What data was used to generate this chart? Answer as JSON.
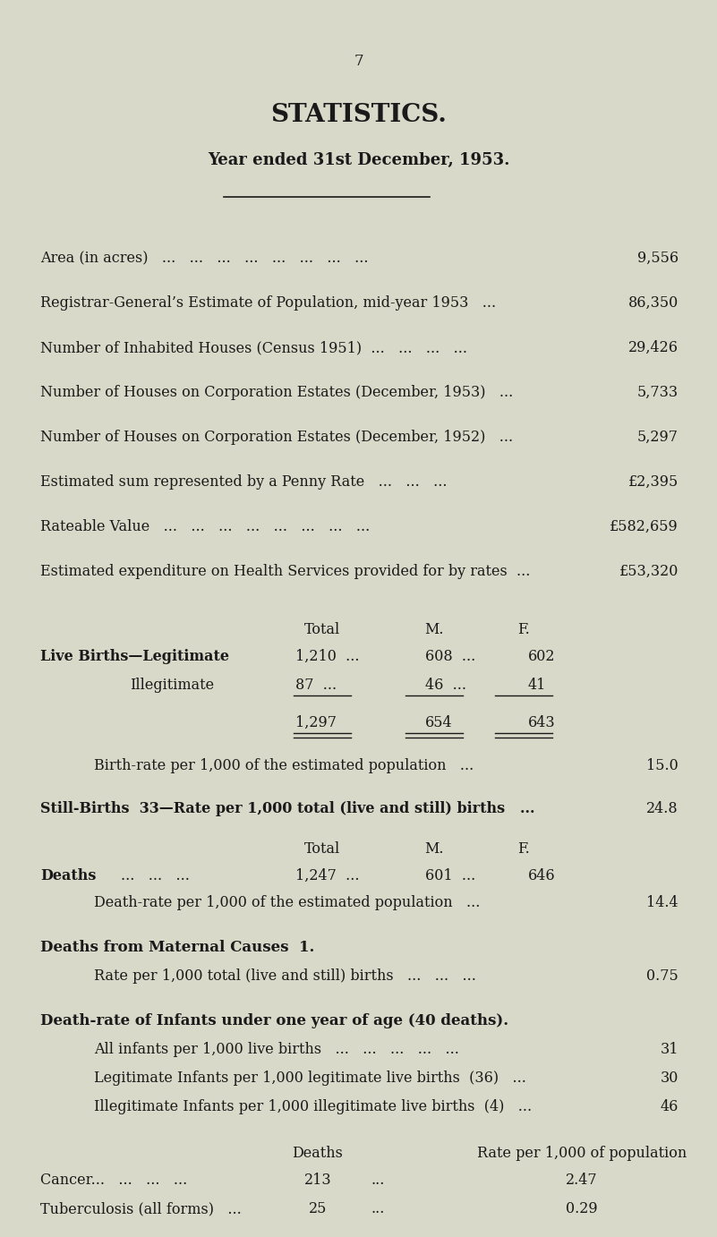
{
  "page_number": "7",
  "title": "STATISTICS.",
  "subtitle": "Year ended 31st December, 1953.",
  "bg_color": "#d8d9c8",
  "text_color": "#1a1a1a",
  "simple_rows": [
    [
      "Area (in acres)   ...   ...   ...   ...   ...   ...   ...   ...",
      "9,556"
    ],
    [
      "Registrar-General’s Estimate of Population, mid-year 1953   ...",
      "86,350"
    ],
    [
      "Number of Inhabited Houses (Census 1951)  ...   ...   ...   ...",
      "29,426"
    ],
    [
      "Number of Houses on Corporation Estates (December, 1953)   ...",
      "5,733"
    ],
    [
      "Number of Houses on Corporation Estates (December, 1952)   ...",
      "5,297"
    ],
    [
      "Estimated sum represented by a Penny Rate   ...   ...   ...",
      "£2,395"
    ],
    [
      "Rateable Value   ...   ...   ...   ...   ...   ...   ...   ...",
      "£582,659"
    ],
    [
      "Estimated expenditure on Health Services provided for by rates  ...",
      "£53,320"
    ]
  ],
  "birth_rate_label": "Birth-rate per 1,000 of the estimated population   ...",
  "birth_rate_value": "15.0",
  "still_births_label": "Still-Births  33—Rate per 1,000 total (live and still) births   ...",
  "still_births_value": "24.8",
  "death_rate_label": "Death-rate per 1,000 of the estimated population   ...",
  "death_rate_value": "14.4",
  "maternal_causes_label": "Deaths from Maternal Causes  1.",
  "maternal_rate_label": "Rate per 1,000 total (live and still) births   ...   ...   ...",
  "maternal_rate_value": "0.75",
  "infant_section_label": "Death-rate of Infants under one year of age (40 deaths).",
  "infant_rows": [
    [
      "All infants per 1,000 live births   ...   ...   ...   ...   ...",
      "31"
    ],
    [
      "Legitimate Infants per 1,000 legitimate live births  (36)   ...",
      "30"
    ],
    [
      "Illegitimate Infants per 1,000 illegitimate live births  (4)   ...",
      "46"
    ]
  ],
  "final_rows": [
    [
      "Cancer...   ...   ...   ...",
      "213",
      "...",
      "2.47"
    ],
    [
      "Tuberculosis (all forms)   ...",
      "25",
      "...",
      "0.29"
    ]
  ]
}
